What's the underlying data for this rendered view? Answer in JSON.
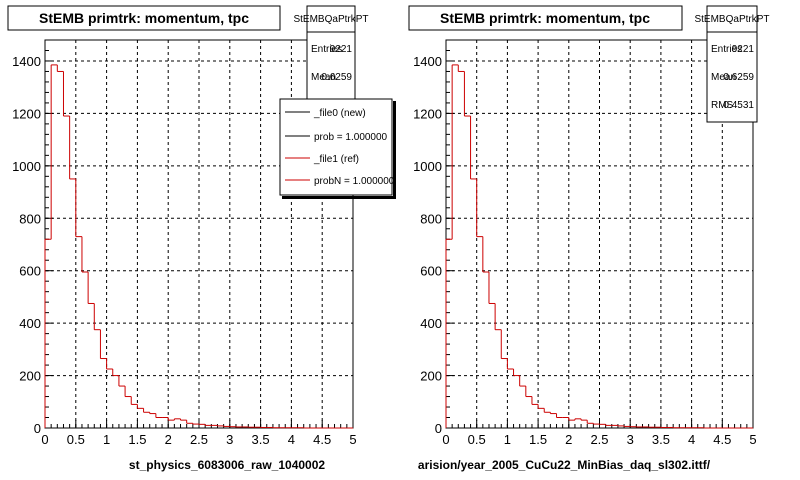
{
  "footer_text": "",
  "colors": {
    "hist_new": "#000000",
    "hist_ref": "#cc0000",
    "grid": "#000000",
    "frame": "#000000"
  },
  "legend": {
    "entries": [
      {
        "label": "_file0 (new)",
        "color": "#000000"
      },
      {
        "label": "prob = 1.000000",
        "color": "#000000"
      },
      {
        "label": "_file1 (ref)",
        "color": "#cc0000"
      },
      {
        "label": "probN = 1.000000",
        "color": "#cc0000"
      }
    ]
  },
  "chart_data": [
    {
      "type": "bar",
      "title": "StEMB primtrk: momentum, tpc",
      "xlabel": "st_physics_6083006_raw_1040002",
      "ylabel": "",
      "xlim": [
        0,
        5
      ],
      "ylim": [
        0,
        1480
      ],
      "xticks": [
        "0",
        "0.5",
        "1",
        "1.5",
        "2",
        "2.5",
        "3",
        "3.5",
        "4",
        "4.5",
        "5"
      ],
      "yticks": [
        "0",
        "200",
        "400",
        "600",
        "800",
        "1000",
        "1200",
        "1400"
      ],
      "ytick_values": [
        0,
        200,
        400,
        600,
        800,
        1000,
        1200,
        1400
      ],
      "grid": true,
      "legend_position": "top-right",
      "bin_width": 0.1,
      "stats": {
        "name": "StEMBQaPtrkPT",
        "Entries": "9221",
        "Mean": "0.6259"
      },
      "series": [
        {
          "name": "_file1 (ref)",
          "values": [
            720,
            1385,
            1360,
            1190,
            950,
            730,
            595,
            475,
            375,
            265,
            225,
            200,
            160,
            120,
            90,
            75,
            60,
            55,
            40,
            40,
            30,
            35,
            30,
            18,
            15,
            14,
            10,
            10,
            8,
            6,
            5,
            4,
            4,
            3,
            3,
            2,
            2,
            1,
            1,
            1,
            1,
            1,
            0,
            0,
            0,
            0,
            0,
            0,
            0,
            0
          ]
        }
      ]
    },
    {
      "type": "bar",
      "title": "StEMB primtrk: momentum, tpc",
      "xlabel": "arision/year_2005_CuCu22_MinBias_daq_sl302.ittf/",
      "ylabel": "",
      "xlim": [
        0,
        5
      ],
      "ylim": [
        0,
        1480
      ],
      "xticks": [
        "0",
        "0.5",
        "1",
        "1.5",
        "2",
        "2.5",
        "3",
        "3.5",
        "4",
        "4.5",
        "5"
      ],
      "yticks": [
        "0",
        "200",
        "400",
        "600",
        "800",
        "1000",
        "1200",
        "1400"
      ],
      "ytick_values": [
        0,
        200,
        400,
        600,
        800,
        1000,
        1200,
        1400
      ],
      "grid": true,
      "bin_width": 0.1,
      "stats": {
        "name": "StEMBQaPtrkPT",
        "Entries": "9221",
        "Mean": "0.6259",
        "RMS": "0.4531"
      },
      "series": [
        {
          "name": "_file1 (ref)",
          "values": [
            720,
            1385,
            1360,
            1190,
            950,
            730,
            595,
            475,
            375,
            265,
            225,
            200,
            160,
            120,
            90,
            75,
            60,
            55,
            40,
            40,
            30,
            35,
            30,
            18,
            15,
            14,
            10,
            10,
            8,
            6,
            5,
            4,
            4,
            3,
            3,
            2,
            2,
            1,
            1,
            1,
            1,
            1,
            0,
            0,
            0,
            0,
            0,
            0,
            0,
            0
          ]
        }
      ]
    }
  ]
}
